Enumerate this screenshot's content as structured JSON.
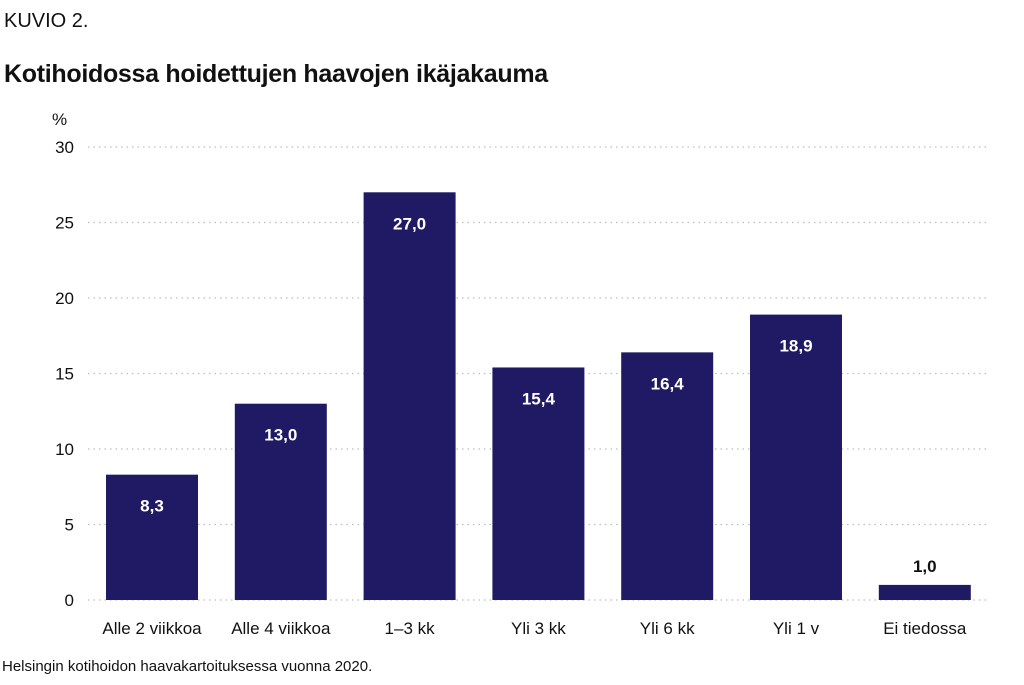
{
  "header": {
    "kicker": "KUVIO 2.",
    "title": "Kotihoidossa hoidettujen haavojen ikäjakauma"
  },
  "footer": {
    "source": "Helsingin kotihoidon haavakartoituksessa vuonna 2020."
  },
  "colors": {
    "bar": "#1f1a63",
    "label_inside": "#ffffff",
    "label_outside": "#111111",
    "grid": "#bdbdbd"
  },
  "chart_data": {
    "type": "bar",
    "title": "Kotihoidossa hoidettujen haavojen ikäjakauma",
    "xlabel": "",
    "ylabel": "%",
    "categories": [
      "Alle 2 viikkoa",
      "Alle 4 viikkoa",
      "1–3 kk",
      "Yli 3 kk",
      "Yli 6 kk",
      "Yli 1 v",
      "Ei tiedossa"
    ],
    "values": [
      8.3,
      13.0,
      27.0,
      15.4,
      16.4,
      18.9,
      1.0
    ],
    "value_labels": [
      "8,3",
      "13,0",
      "27,0",
      "15,4",
      "16,4",
      "18,9",
      "1,0"
    ],
    "ylim": [
      0,
      30
    ],
    "yticks": [
      0,
      5,
      10,
      15,
      20,
      25,
      30
    ],
    "grid": "horizontal dotted",
    "legend": "none"
  }
}
